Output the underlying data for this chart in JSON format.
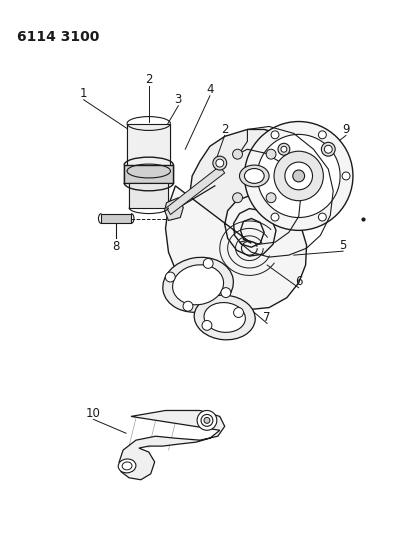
{
  "title": "6114 3100",
  "bg_color": "#ffffff",
  "line_color": "#1a1a1a",
  "fig_width": 4.08,
  "fig_height": 5.33,
  "dpi": 100
}
